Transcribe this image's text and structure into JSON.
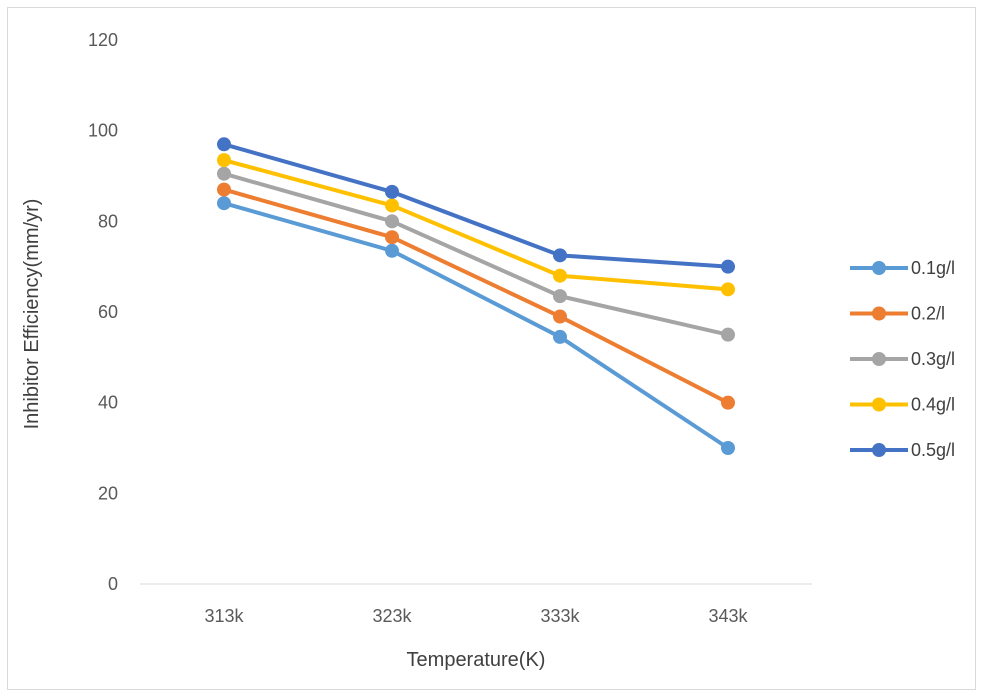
{
  "chart_data": {
    "type": "line",
    "categories": [
      "313k",
      "323k",
      "333k",
      "343k"
    ],
    "series": [
      {
        "name": "0.1g/l",
        "color": "#5B9BD5",
        "values": [
          84,
          73.5,
          54.5,
          30
        ]
      },
      {
        "name": "0.2/l",
        "color": "#ED7D31",
        "values": [
          87,
          76.5,
          59,
          40
        ]
      },
      {
        "name": "0.3g/l",
        "color": "#A5A5A5",
        "values": [
          90.5,
          80,
          63.5,
          55
        ]
      },
      {
        "name": "0.4g/l",
        "color": "#FFC000",
        "values": [
          93.5,
          83.5,
          68,
          65
        ]
      },
      {
        "name": "0.5g/l",
        "color": "#4472C4",
        "values": [
          97,
          86.5,
          72.5,
          70
        ]
      }
    ],
    "title": "",
    "xlabel": "Temperature(K)",
    "ylabel": "Inhibitor Efficiency(mm/yr)",
    "ylim": [
      0,
      120
    ],
    "yticks": [
      "0",
      "20",
      "40",
      "60",
      "80",
      "100",
      "120"
    ],
    "grid": false,
    "legend": "right",
    "markers": "circle"
  }
}
